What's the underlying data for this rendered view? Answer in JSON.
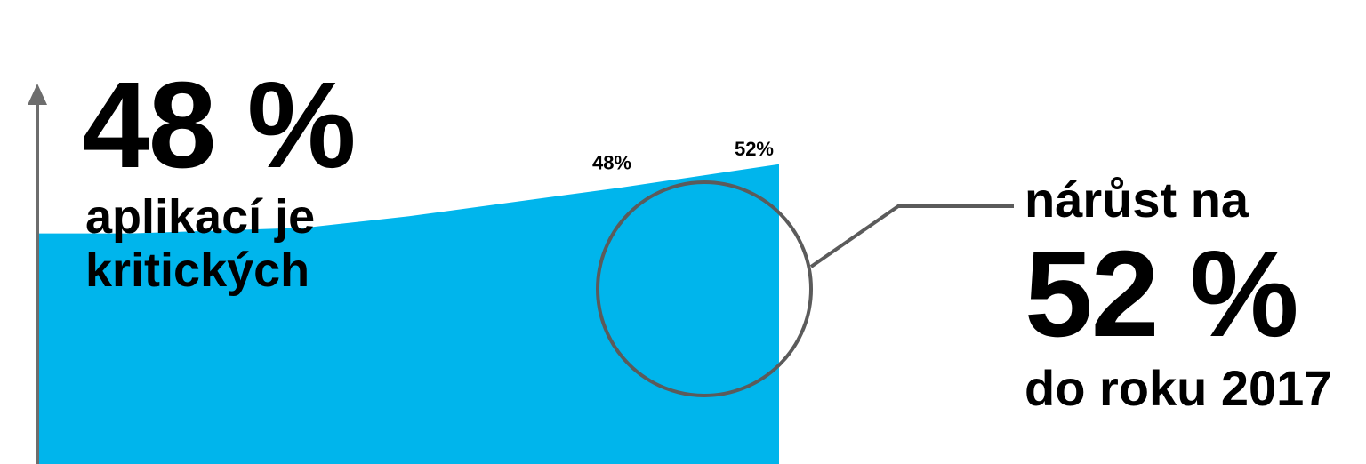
{
  "colors": {
    "area": "#00b5ec",
    "axis": "#6d6d6d",
    "callout": "#5b5b5b",
    "text": "#000000"
  },
  "left_callout": {
    "value": "48 %",
    "caption": "aplikací je kritických"
  },
  "right_callout": {
    "prefix": "nárůst na",
    "value": "52 %",
    "suffix": "do roku 2017"
  },
  "chart_data": {
    "type": "area",
    "x": [
      0,
      1,
      2,
      3,
      4,
      5
    ],
    "values": [
      40,
      40,
      41,
      43,
      48,
      52
    ],
    "ylim": [
      0,
      66
    ],
    "grid": false,
    "point_labels": [
      {
        "index": 4,
        "label": "48%"
      },
      {
        "index": 5,
        "label": "52%"
      }
    ],
    "highlight": "circle around last two points"
  }
}
